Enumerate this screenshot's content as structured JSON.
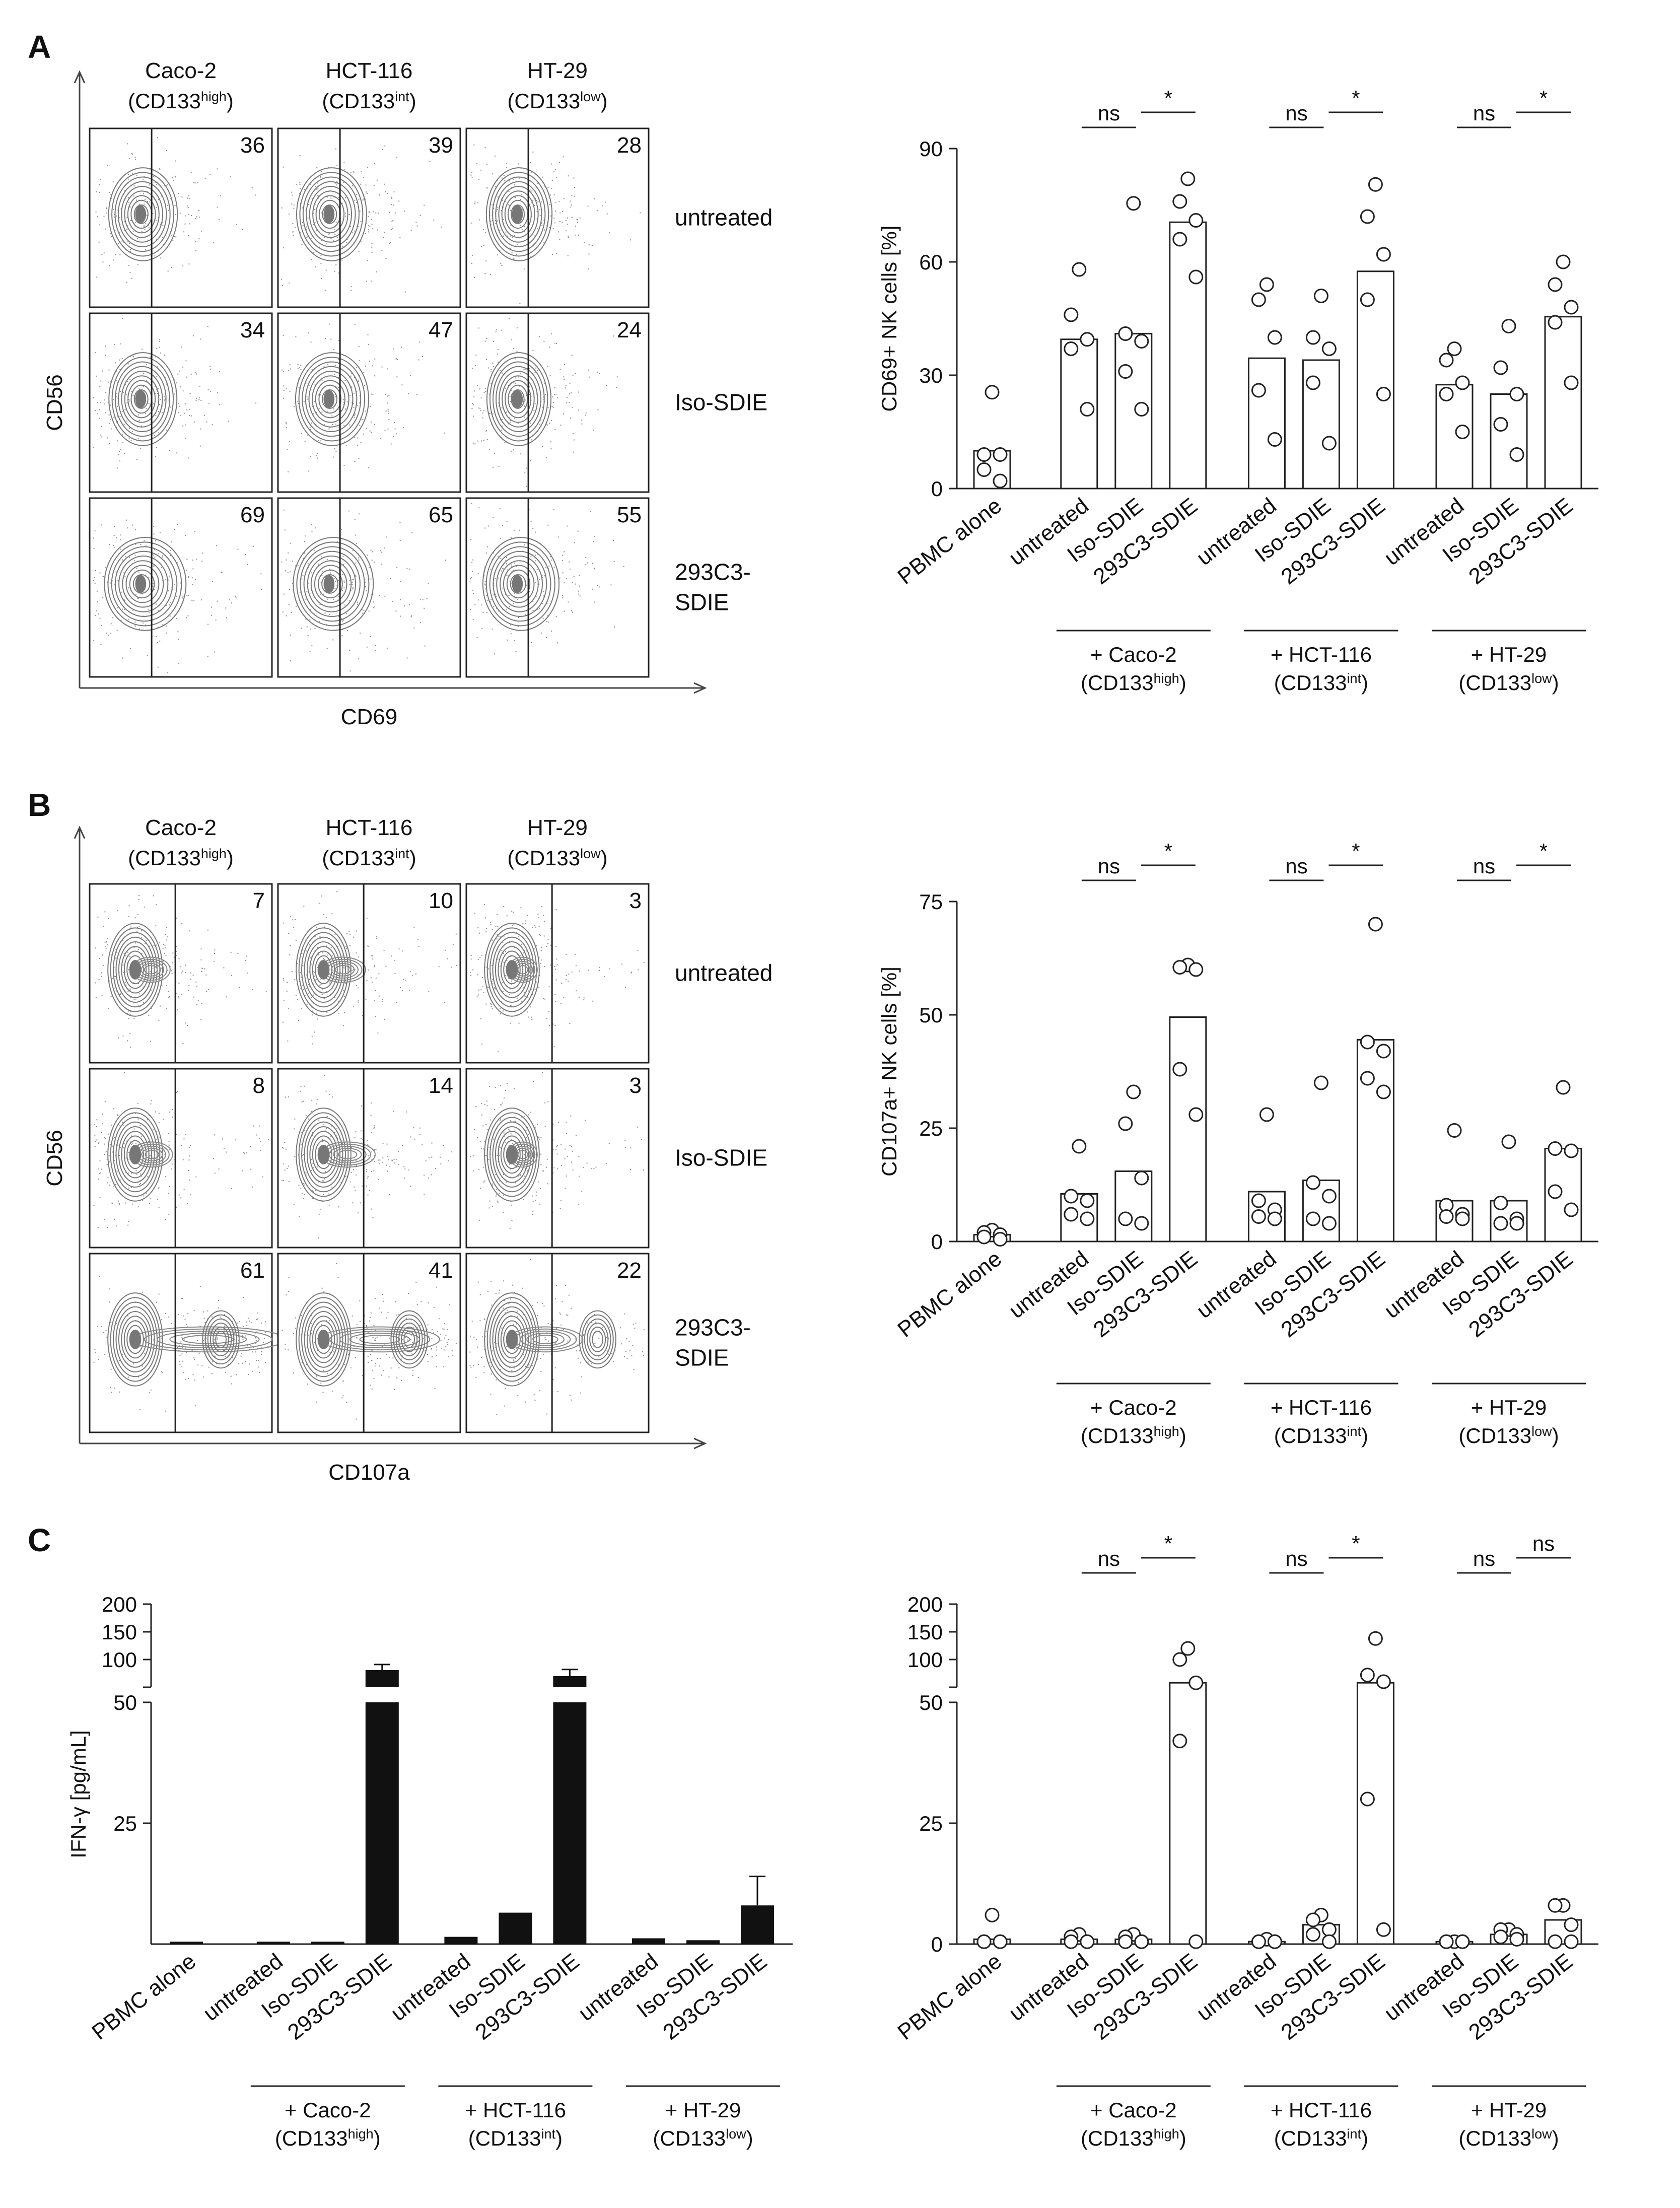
{
  "panels": [
    {
      "letter": "A",
      "flow": {
        "cell_lines": [
          {
            "name": "Caco-2",
            "expr_prefix": "(CD133",
            "expr_sup": "high",
            "expr_suffix": ")"
          },
          {
            "name": "HCT-116",
            "expr_prefix": "(CD133",
            "expr_sup": "int",
            "expr_suffix": ")"
          },
          {
            "name": "HT-29",
            "expr_prefix": "(CD133",
            "expr_sup": "low",
            "expr_suffix": ")"
          }
        ],
        "conditions": [
          [
            "untreated"
          ],
          [
            "Iso-SDIE"
          ],
          [
            "293C3-",
            "SDIE"
          ]
        ],
        "percentages": [
          [
            36,
            39,
            28
          ],
          [
            34,
            47,
            24
          ],
          [
            69,
            65,
            55
          ]
        ],
        "y_axis": "CD56",
        "x_axis": "CD69",
        "style": "A"
      }
    },
    {
      "letter": "B",
      "flow": {
        "cell_lines": [
          {
            "name": "Caco-2",
            "expr_prefix": "(CD133",
            "expr_sup": "high",
            "expr_suffix": ")"
          },
          {
            "name": "HCT-116",
            "expr_prefix": "(CD133",
            "expr_sup": "int",
            "expr_suffix": ")"
          },
          {
            "name": "HT-29",
            "expr_prefix": "(CD133",
            "expr_sup": "low",
            "expr_suffix": ")"
          }
        ],
        "conditions": [
          [
            "untreated"
          ],
          [
            "Iso-SDIE"
          ],
          [
            "293C3-",
            "SDIE"
          ]
        ],
        "percentages": [
          [
            7,
            10,
            3
          ],
          [
            8,
            14,
            3
          ],
          [
            61,
            41,
            22
          ]
        ],
        "y_axis": "CD56",
        "x_axis": "CD107a",
        "style": "B"
      }
    },
    {
      "letter": "C"
    }
  ],
  "chart_data": [
    {
      "id": "A-scatter",
      "type": "bar",
      "ylabel": "CD69+ NK cells [%]",
      "ylim": [
        0,
        90
      ],
      "yticks": [
        0,
        30,
        60,
        90
      ],
      "categories": [
        "PBMC alone",
        "untreated",
        "Iso-SDIE",
        "293C3-SDIE",
        "untreated",
        "Iso-SDIE",
        "293C3-SDIE",
        "untreated",
        "Iso-SDIE",
        "293C3-SDIE"
      ],
      "bar_values": [
        10,
        39.5,
        41,
        70.5,
        34.5,
        34,
        57.5,
        27.5,
        25,
        45.5
      ],
      "points": [
        [
          25.5,
          9,
          9,
          5,
          2
        ],
        [
          58,
          46,
          39.5,
          37,
          21
        ],
        [
          75.5,
          41,
          39,
          31,
          21
        ],
        [
          82,
          76,
          71,
          66,
          56
        ],
        [
          54,
          50,
          40,
          26,
          13
        ],
        [
          51,
          40,
          37,
          28,
          12
        ],
        [
          80.5,
          72,
          62,
          50,
          25
        ],
        [
          37,
          34,
          28,
          25,
          15
        ],
        [
          43,
          32,
          25,
          17,
          9
        ],
        [
          60,
          54,
          48,
          44,
          28
        ]
      ],
      "groups": [
        {
          "label": "+ Caco-2",
          "expr_prefix": "(CD133",
          "expr_sup": "high",
          "expr_suffix": ")"
        },
        {
          "label": "+ HCT-116",
          "expr_prefix": "(CD133",
          "expr_sup": "int",
          "expr_suffix": ")"
        },
        {
          "label": "+ HT-29",
          "expr_prefix": "(CD133",
          "expr_sup": "low",
          "expr_suffix": ")"
        }
      ],
      "significance": [
        [
          "ns",
          "*"
        ],
        [
          "ns",
          "*"
        ],
        [
          "ns",
          "*"
        ]
      ]
    },
    {
      "id": "B-scatter",
      "type": "bar",
      "ylabel": "CD107a+ NK cells [%]",
      "ylim": [
        0,
        75
      ],
      "yticks": [
        0,
        25,
        50,
        75
      ],
      "categories": [
        "PBMC alone",
        "untreated",
        "Iso-SDIE",
        "293C3-SDIE",
        "untreated",
        "Iso-SDIE",
        "293C3-SDIE",
        "untreated",
        "Iso-SDIE",
        "293C3-SDIE"
      ],
      "bar_values": [
        1.5,
        10.5,
        15.5,
        49.5,
        11,
        13.5,
        44.5,
        9,
        9,
        20.5
      ],
      "points": [
        [
          2.5,
          2,
          1.5,
          1,
          0.5
        ],
        [
          21,
          10,
          9,
          6,
          5
        ],
        [
          33,
          26,
          14,
          5,
          4
        ],
        [
          61,
          60.5,
          60,
          38,
          28
        ],
        [
          28,
          9,
          7,
          5.5,
          5
        ],
        [
          35,
          13,
          10,
          5,
          4
        ],
        [
          70,
          44,
          42,
          36,
          33
        ],
        [
          24.5,
          8,
          6,
          5.5,
          5
        ],
        [
          22,
          8.5,
          5,
          4,
          4
        ],
        [
          34,
          20.5,
          20,
          11,
          7
        ]
      ],
      "groups": [
        {
          "label": "+ Caco-2",
          "expr_prefix": "(CD133",
          "expr_sup": "high",
          "expr_suffix": ")"
        },
        {
          "label": "+ HCT-116",
          "expr_prefix": "(CD133",
          "expr_sup": "int",
          "expr_suffix": ")"
        },
        {
          "label": "+ HT-29",
          "expr_prefix": "(CD133",
          "expr_sup": "low",
          "expr_suffix": ")"
        }
      ],
      "significance": [
        [
          "ns",
          "*"
        ],
        [
          "ns",
          "*"
        ],
        [
          "ns",
          "*"
        ]
      ]
    },
    {
      "id": "C-bar",
      "type": "bar",
      "ylabel": "IFN-γ [pg/mL]",
      "axis_break": "y axis broken at 50",
      "yticks_lower": [
        25,
        50
      ],
      "yticks_upper": [
        100,
        150,
        200
      ],
      "categories": [
        "PBMC alone",
        "untreated",
        "Iso-SDIE",
        "293C3-SDIE",
        "untreated",
        "Iso-SDIE",
        "293C3-SDIE",
        "untreated",
        "Iso-SDIE",
        "293C3-SDIE"
      ],
      "values": [
        0.5,
        0.5,
        0.5,
        81,
        1.5,
        6.5,
        70,
        1.2,
        0.8,
        8
      ],
      "errors": [
        0,
        0,
        0,
        10,
        0,
        0,
        12,
        0,
        0,
        6
      ],
      "groups": [
        {
          "label": "+ Caco-2",
          "expr_prefix": "(CD133",
          "expr_sup": "high",
          "expr_suffix": ")"
        },
        {
          "label": "+ HCT-116",
          "expr_prefix": "(CD133",
          "expr_sup": "int",
          "expr_suffix": ")"
        },
        {
          "label": "+ HT-29",
          "expr_prefix": "(CD133",
          "expr_sup": "low",
          "expr_suffix": ")"
        }
      ]
    },
    {
      "id": "C-scatter",
      "type": "bar",
      "axis_break": "y axis broken at 50",
      "yticks_lower": [
        0,
        25,
        50
      ],
      "yticks_upper": [
        100,
        150,
        200
      ],
      "categories": [
        "PBMC alone",
        "untreated",
        "Iso-SDIE",
        "293C3-SDIE",
        "untreated",
        "Iso-SDIE",
        "293C3-SDIE",
        "untreated",
        "Iso-SDIE",
        "293C3-SDIE"
      ],
      "bar_values": [
        1,
        1,
        1,
        58,
        0.5,
        4,
        58,
        0.5,
        2,
        5
      ],
      "points": [
        [
          6,
          0.5,
          0.5,
          0.5,
          0.5
        ],
        [
          2,
          1.5,
          0.5,
          0.5,
          0.5
        ],
        [
          2,
          1.5,
          0.5,
          0.5,
          0.5
        ],
        [
          120,
          100,
          58,
          42,
          0.5
        ],
        [
          1,
          0.5,
          0.5,
          0.5,
          0.5
        ],
        [
          6,
          5,
          3,
          2,
          0.5
        ],
        [
          138,
          72,
          60,
          30,
          3
        ],
        [
          0.5,
          0.5,
          0.5,
          0.5,
          0.5
        ],
        [
          3,
          3,
          2,
          1.5,
          1
        ],
        [
          8,
          8,
          4,
          0.5,
          0.5
        ]
      ],
      "groups": [
        {
          "label": "+ Caco-2",
          "expr_prefix": "(CD133",
          "expr_sup": "high",
          "expr_suffix": ")"
        },
        {
          "label": "+ HCT-116",
          "expr_prefix": "(CD133",
          "expr_sup": "int",
          "expr_suffix": ")"
        },
        {
          "label": "+ HT-29",
          "expr_prefix": "(CD133",
          "expr_sup": "low",
          "expr_suffix": ")"
        }
      ],
      "significance": [
        [
          "ns",
          "*"
        ],
        [
          "ns",
          "*"
        ],
        [
          "ns",
          "ns"
        ]
      ]
    }
  ]
}
